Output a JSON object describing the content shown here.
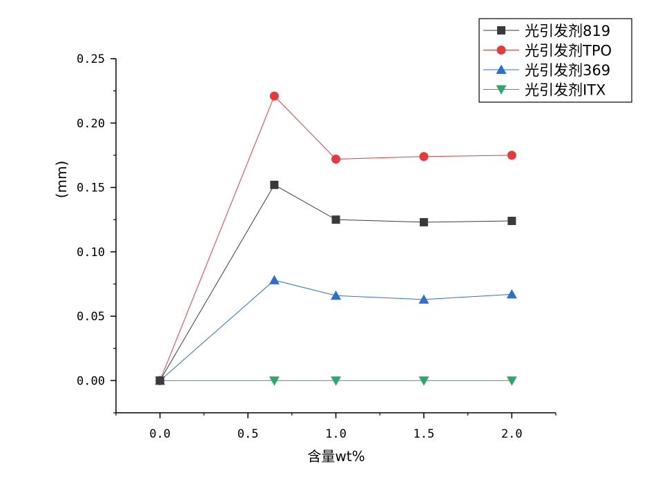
{
  "chart_data": {
    "type": "line",
    "title": "",
    "xlabel": "含量wt%",
    "ylabel": "(mm)",
    "xlim": [
      -0.25,
      2.25
    ],
    "ylim": [
      -0.025,
      0.25
    ],
    "xticks": [
      0.0,
      0.5,
      1.0,
      1.5,
      2.0
    ],
    "xtick_labels": [
      "0.0",
      "0.5",
      "1.0",
      "1.5",
      "2.0"
    ],
    "yticks": [
      0.0,
      0.05,
      0.1,
      0.15,
      0.2,
      0.25
    ],
    "ytick_labels": [
      "0.00",
      "0.05",
      "0.10",
      "0.15",
      "0.20",
      "0.25"
    ],
    "grid": false,
    "legend_position": "top-right",
    "x": [
      0.0,
      0.65,
      1.0,
      1.5,
      2.0
    ],
    "series": [
      {
        "name": "光引发剂819",
        "marker": "square",
        "color": "#3a3a3a",
        "values": [
          0.0,
          0.152,
          0.125,
          0.123,
          0.124
        ]
      },
      {
        "name": "光引发剂TPO",
        "marker": "circle",
        "color": "#e83a3a",
        "values": [
          0.0,
          0.221,
          0.172,
          0.174,
          0.175
        ]
      },
      {
        "name": "光引发剂369",
        "marker": "triangle-up",
        "color": "#2a6fd6",
        "values": [
          0.0,
          0.078,
          0.066,
          0.063,
          0.067
        ]
      },
      {
        "name": "光引发剂ITX",
        "marker": "triangle-down",
        "color": "#2ea86a",
        "values": [
          0.0,
          0.0,
          0.0,
          0.0,
          0.0
        ]
      }
    ]
  }
}
